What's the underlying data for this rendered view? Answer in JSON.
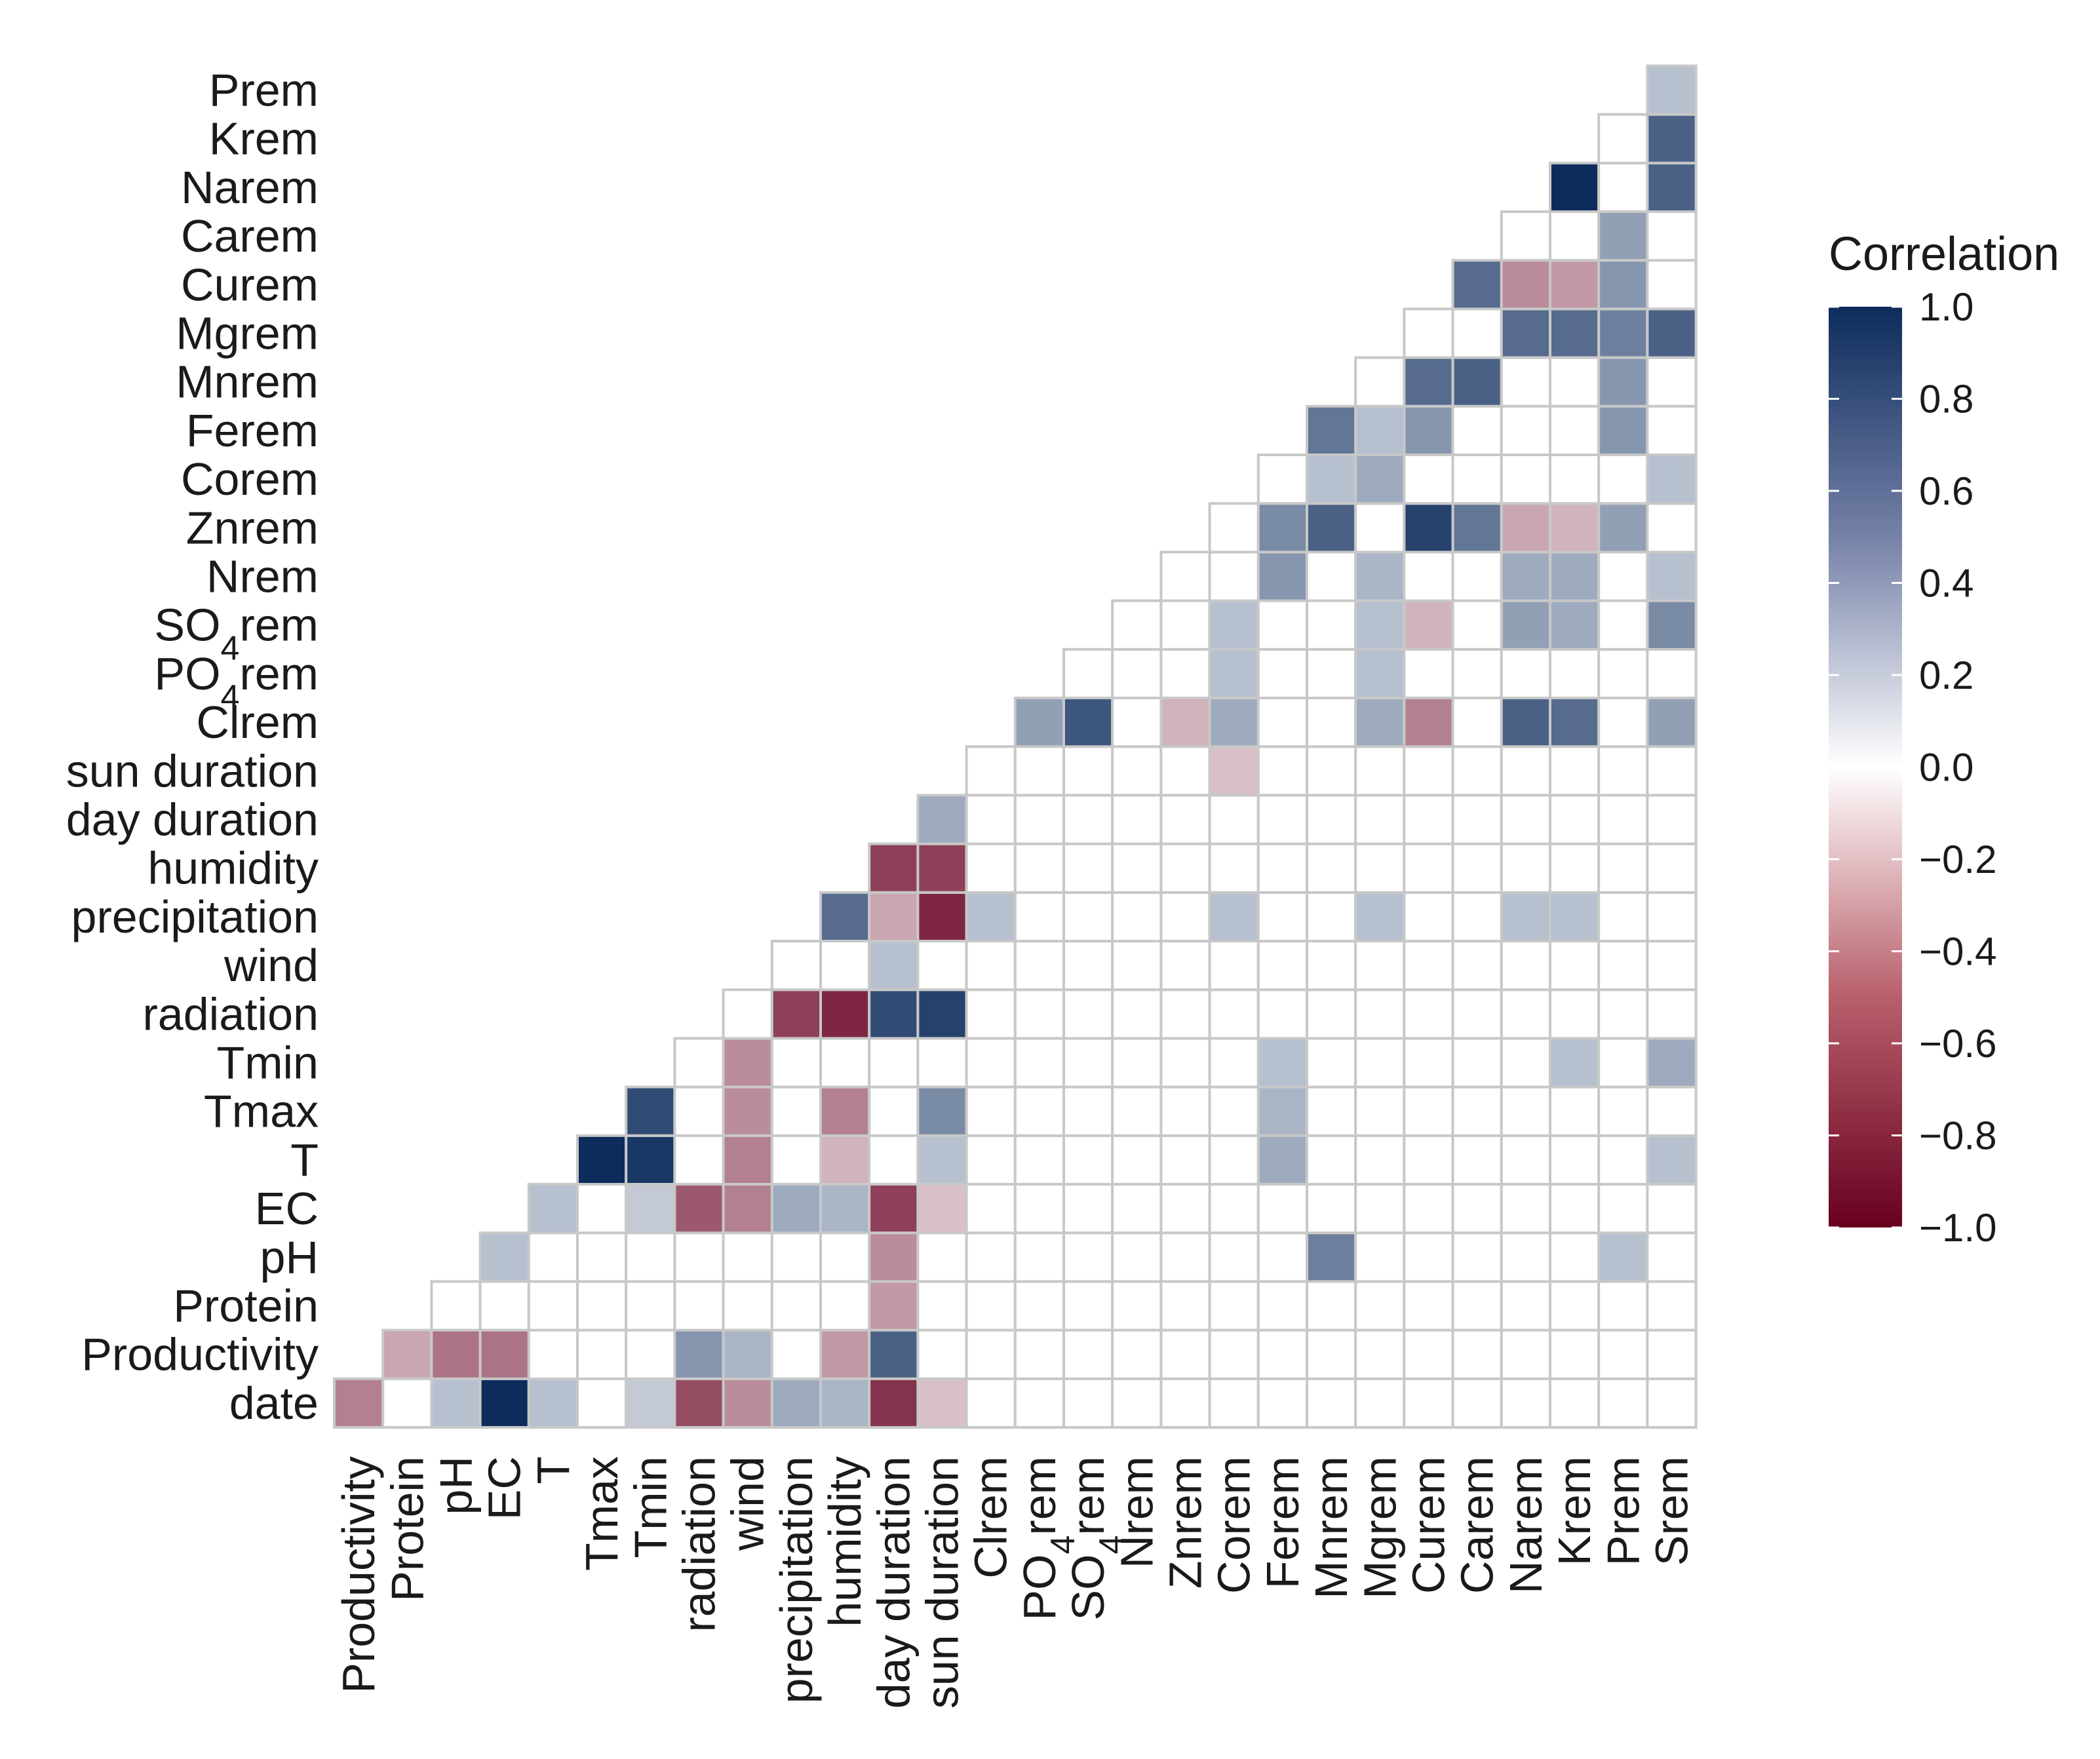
{
  "chart_data": {
    "type": "heatmap",
    "title": "",
    "legend_title": "Correlation",
    "legend_position": "right",
    "legend_ticks": [
      "1.0",
      "0.8",
      "0.6",
      "0.4",
      "0.2",
      "0.0",
      "−0.2",
      "−0.4",
      "−0.6",
      "−0.8",
      "−1.0"
    ],
    "legend_tick_values": [
      1.0,
      0.8,
      0.6,
      0.4,
      0.2,
      0.0,
      -0.2,
      -0.4,
      -0.6,
      -0.8,
      -1.0
    ],
    "color_scale": {
      "low": "#67001f",
      "mid": "#ffffff",
      "high": "#0d2c5c",
      "limits": [
        -1,
        1
      ]
    },
    "x_labels": [
      "Productivity",
      "Protein",
      "pH",
      "EC",
      "T",
      "Tmax",
      "Tmin",
      "radiation",
      "wind",
      "precipitation",
      "humidity",
      "day duration",
      "sun duration",
      "Clrem",
      "PO4rem",
      "SO4rem",
      "Nrem",
      "Znrem",
      "Corem",
      "Ferem",
      "Mnrem",
      "Mgrem",
      "Curem",
      "Carem",
      "Narem",
      "Krem",
      "Prem",
      "Srem"
    ],
    "y_labels": [
      "date",
      "Productivity",
      "Protein",
      "pH",
      "EC",
      "T",
      "Tmax",
      "Tmin",
      "radiation",
      "wind",
      "precipitation",
      "humidity",
      "day duration",
      "sun duration",
      "Clrem",
      "PO4rem",
      "SO4rem",
      "Nrem",
      "Znrem",
      "Corem",
      "Ferem",
      "Mnrem",
      "Mgrem",
      "Curem",
      "Carem",
      "Narem",
      "Krem",
      "Prem"
    ],
    "cells": [
      {
        "row": "date",
        "col": "Productivity",
        "value": -0.5
      },
      {
        "row": "date",
        "col": "pH",
        "value": 0.3
      },
      {
        "row": "date",
        "col": "EC",
        "value": 1.0
      },
      {
        "row": "date",
        "col": "T",
        "value": 0.3
      },
      {
        "row": "date",
        "col": "Tmin",
        "value": 0.25
      },
      {
        "row": "date",
        "col": "radiation",
        "value": -0.7
      },
      {
        "row": "date",
        "col": "wind",
        "value": -0.45
      },
      {
        "row": "date",
        "col": "precipitation",
        "value": 0.4
      },
      {
        "row": "date",
        "col": "humidity",
        "value": 0.35
      },
      {
        "row": "date",
        "col": "day duration",
        "value": -0.8
      },
      {
        "row": "date",
        "col": "sun duration",
        "value": -0.25
      },
      {
        "row": "Productivity",
        "col": "Protein",
        "value": -0.35
      },
      {
        "row": "Productivity",
        "col": "pH",
        "value": -0.55
      },
      {
        "row": "Productivity",
        "col": "EC",
        "value": -0.55
      },
      {
        "row": "Productivity",
        "col": "radiation",
        "value": 0.5
      },
      {
        "row": "Productivity",
        "col": "wind",
        "value": 0.35
      },
      {
        "row": "Productivity",
        "col": "humidity",
        "value": -0.4
      },
      {
        "row": "Productivity",
        "col": "day duration",
        "value": 0.75
      },
      {
        "row": "Protein",
        "col": "day duration",
        "value": -0.4
      },
      {
        "row": "pH",
        "col": "EC",
        "value": 0.3
      },
      {
        "row": "pH",
        "col": "day duration",
        "value": -0.45
      },
      {
        "row": "pH",
        "col": "Mnrem",
        "value": 0.6
      },
      {
        "row": "pH",
        "col": "Prem",
        "value": 0.3
      },
      {
        "row": "EC",
        "col": "T",
        "value": 0.3
      },
      {
        "row": "EC",
        "col": "Tmin",
        "value": 0.25
      },
      {
        "row": "EC",
        "col": "radiation",
        "value": -0.65
      },
      {
        "row": "EC",
        "col": "wind",
        "value": -0.5
      },
      {
        "row": "EC",
        "col": "precipitation",
        "value": 0.4
      },
      {
        "row": "EC",
        "col": "humidity",
        "value": 0.35
      },
      {
        "row": "EC",
        "col": "day duration",
        "value": -0.75
      },
      {
        "row": "EC",
        "col": "sun duration",
        "value": -0.25
      },
      {
        "row": "T",
        "col": "Tmax",
        "value": 1.0
      },
      {
        "row": "T",
        "col": "Tmin",
        "value": 0.95
      },
      {
        "row": "T",
        "col": "wind",
        "value": -0.5
      },
      {
        "row": "T",
        "col": "humidity",
        "value": -0.3
      },
      {
        "row": "T",
        "col": "sun duration",
        "value": 0.3
      },
      {
        "row": "T",
        "col": "Ferem",
        "value": 0.4
      },
      {
        "row": "T",
        "col": "Srem",
        "value": 0.3
      },
      {
        "row": "Tmax",
        "col": "Tmin",
        "value": 0.85
      },
      {
        "row": "Tmax",
        "col": "wind",
        "value": -0.45
      },
      {
        "row": "Tmax",
        "col": "humidity",
        "value": -0.5
      },
      {
        "row": "Tmax",
        "col": "sun duration",
        "value": 0.55
      },
      {
        "row": "Tmax",
        "col": "Ferem",
        "value": 0.35
      },
      {
        "row": "Tmin",
        "col": "wind",
        "value": -0.45
      },
      {
        "row": "Tmin",
        "col": "Ferem",
        "value": 0.3
      },
      {
        "row": "Tmin",
        "col": "Krem",
        "value": 0.3
      },
      {
        "row": "Tmin",
        "col": "Srem",
        "value": 0.4
      },
      {
        "row": "radiation",
        "col": "precipitation",
        "value": -0.75
      },
      {
        "row": "radiation",
        "col": "humidity",
        "value": -0.85
      },
      {
        "row": "radiation",
        "col": "day duration",
        "value": 0.85
      },
      {
        "row": "radiation",
        "col": "sun duration",
        "value": 0.9
      },
      {
        "row": "wind",
        "col": "day duration",
        "value": 0.3
      },
      {
        "row": "precipitation",
        "col": "humidity",
        "value": 0.7
      },
      {
        "row": "precipitation",
        "col": "day duration",
        "value": -0.35
      },
      {
        "row": "precipitation",
        "col": "sun duration",
        "value": -0.85
      },
      {
        "row": "precipitation",
        "col": "Clrem",
        "value": 0.3
      },
      {
        "row": "precipitation",
        "col": "Corem",
        "value": 0.3
      },
      {
        "row": "precipitation",
        "col": "Mgrem",
        "value": 0.3
      },
      {
        "row": "precipitation",
        "col": "Narem",
        "value": 0.3
      },
      {
        "row": "precipitation",
        "col": "Krem",
        "value": 0.3
      },
      {
        "row": "humidity",
        "col": "day duration",
        "value": -0.75
      },
      {
        "row": "humidity",
        "col": "sun duration",
        "value": -0.75
      },
      {
        "row": "day duration",
        "col": "sun duration",
        "value": 0.4
      },
      {
        "row": "sun duration",
        "col": "Corem",
        "value": -0.25
      },
      {
        "row": "Clrem",
        "col": "PO4rem",
        "value": 0.45
      },
      {
        "row": "Clrem",
        "col": "SO4rem",
        "value": 0.8
      },
      {
        "row": "Clrem",
        "col": "Znrem",
        "value": -0.3
      },
      {
        "row": "Clrem",
        "col": "Corem",
        "value": 0.4
      },
      {
        "row": "Clrem",
        "col": "Mgrem",
        "value": 0.4
      },
      {
        "row": "Clrem",
        "col": "Curem",
        "value": -0.5
      },
      {
        "row": "Clrem",
        "col": "Narem",
        "value": 0.75
      },
      {
        "row": "Clrem",
        "col": "Krem",
        "value": 0.7
      },
      {
        "row": "Clrem",
        "col": "Srem",
        "value": 0.45
      },
      {
        "row": "PO4rem",
        "col": "Corem",
        "value": 0.3
      },
      {
        "row": "PO4rem",
        "col": "Mgrem",
        "value": 0.3
      },
      {
        "row": "SO4rem",
        "col": "Corem",
        "value": 0.3
      },
      {
        "row": "SO4rem",
        "col": "Mgrem",
        "value": 0.3
      },
      {
        "row": "SO4rem",
        "col": "Curem",
        "value": -0.3
      },
      {
        "row": "SO4rem",
        "col": "Narem",
        "value": 0.45
      },
      {
        "row": "SO4rem",
        "col": "Krem",
        "value": 0.4
      },
      {
        "row": "SO4rem",
        "col": "Srem",
        "value": 0.55
      },
      {
        "row": "Nrem",
        "col": "Ferem",
        "value": 0.5
      },
      {
        "row": "Nrem",
        "col": "Mgrem",
        "value": 0.35
      },
      {
        "row": "Nrem",
        "col": "Narem",
        "value": 0.4
      },
      {
        "row": "Nrem",
        "col": "Krem",
        "value": 0.4
      },
      {
        "row": "Nrem",
        "col": "Srem",
        "value": 0.3
      },
      {
        "row": "Znrem",
        "col": "Ferem",
        "value": 0.55
      },
      {
        "row": "Znrem",
        "col": "Mnrem",
        "value": 0.75
      },
      {
        "row": "Znrem",
        "col": "Curem",
        "value": 0.9
      },
      {
        "row": "Znrem",
        "col": "Carem",
        "value": 0.65
      },
      {
        "row": "Znrem",
        "col": "Narem",
        "value": -0.35
      },
      {
        "row": "Znrem",
        "col": "Krem",
        "value": -0.3
      },
      {
        "row": "Znrem",
        "col": "Prem",
        "value": 0.45
      },
      {
        "row": "Corem",
        "col": "Mnrem",
        "value": 0.3
      },
      {
        "row": "Corem",
        "col": "Mgrem",
        "value": 0.4
      },
      {
        "row": "Corem",
        "col": "Srem",
        "value": 0.3
      },
      {
        "row": "Ferem",
        "col": "Mnrem",
        "value": 0.65
      },
      {
        "row": "Ferem",
        "col": "Mgrem",
        "value": 0.3
      },
      {
        "row": "Ferem",
        "col": "Curem",
        "value": 0.5
      },
      {
        "row": "Ferem",
        "col": "Prem",
        "value": 0.5
      },
      {
        "row": "Mnrem",
        "col": "Curem",
        "value": 0.7
      },
      {
        "row": "Mnrem",
        "col": "Carem",
        "value": 0.75
      },
      {
        "row": "Mnrem",
        "col": "Prem",
        "value": 0.5
      },
      {
        "row": "Mgrem",
        "col": "Narem",
        "value": 0.7
      },
      {
        "row": "Mgrem",
        "col": "Krem",
        "value": 0.7
      },
      {
        "row": "Mgrem",
        "col": "Prem",
        "value": 0.6
      },
      {
        "row": "Mgrem",
        "col": "Srem",
        "value": 0.75
      },
      {
        "row": "Curem",
        "col": "Carem",
        "value": 0.7
      },
      {
        "row": "Curem",
        "col": "Narem",
        "value": -0.45
      },
      {
        "row": "Curem",
        "col": "Krem",
        "value": -0.4
      },
      {
        "row": "Curem",
        "col": "Prem",
        "value": 0.5
      },
      {
        "row": "Carem",
        "col": "Prem",
        "value": 0.45
      },
      {
        "row": "Narem",
        "col": "Krem",
        "value": 1.0
      },
      {
        "row": "Narem",
        "col": "Srem",
        "value": 0.75
      },
      {
        "row": "Krem",
        "col": "Srem",
        "value": 0.75
      },
      {
        "row": "Prem",
        "col": "Srem",
        "value": 0.3
      }
    ]
  }
}
